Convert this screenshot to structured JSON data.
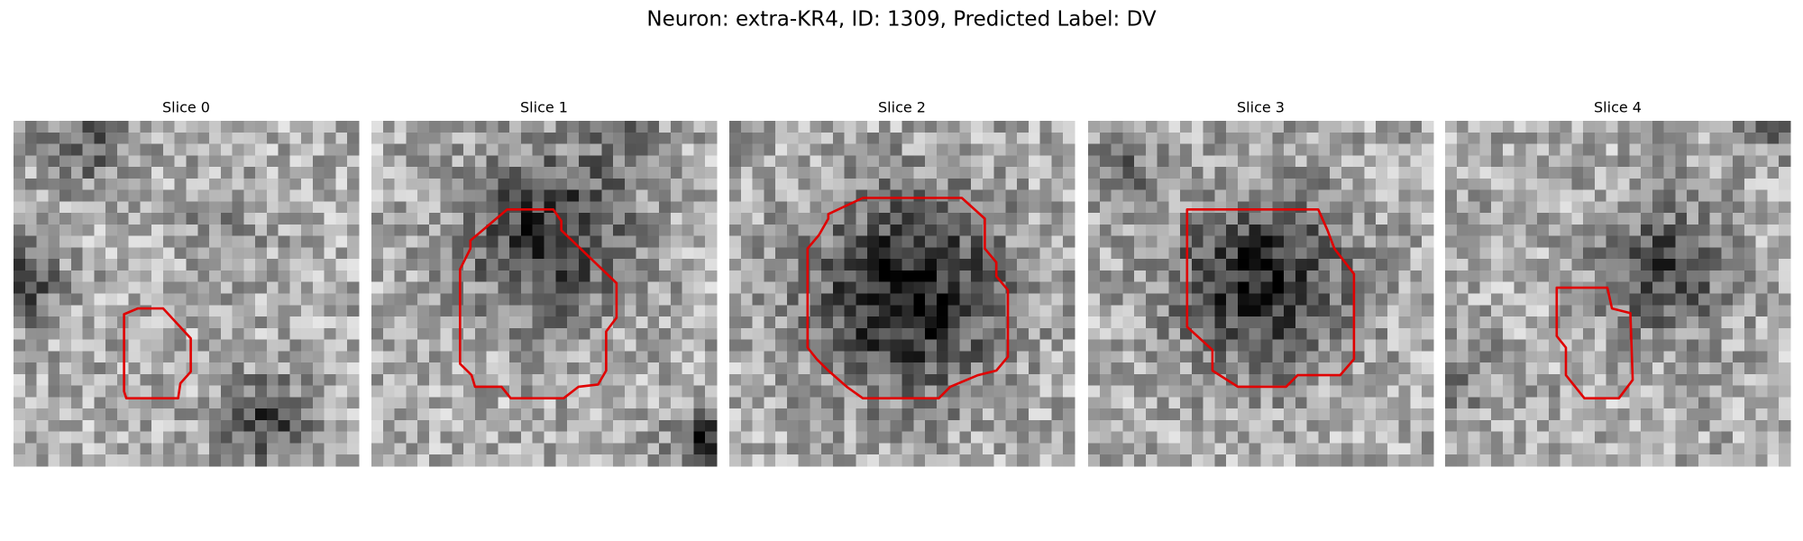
{
  "title": "Neuron: extra-KR4, ID: 1309, Predicted Label: DV",
  "panels": [
    {
      "title": "Slice 0"
    },
    {
      "title": "Slice 1"
    },
    {
      "title": "Slice 2"
    },
    {
      "title": "Slice 3"
    },
    {
      "title": "Slice 4"
    }
  ]
}
